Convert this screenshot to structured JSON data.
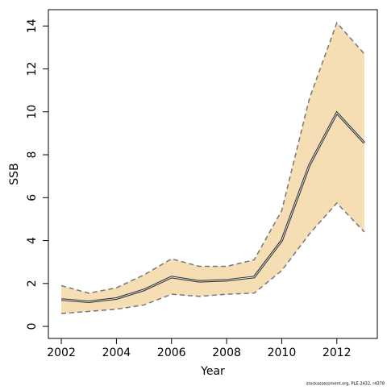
{
  "chart_data": {
    "type": "line",
    "x_label": "Year",
    "y_label": "SSB",
    "footnote": "stockassessment.org, PLE-2432, r4378",
    "x": [
      2002,
      2003,
      2004,
      2005,
      2006,
      2007,
      2008,
      2009,
      2010,
      2011,
      2012,
      2013
    ],
    "values": [
      1.25,
      1.15,
      1.3,
      1.7,
      2.3,
      2.1,
      2.15,
      2.3,
      4.0,
      7.5,
      9.95,
      8.55
    ],
    "upper": [
      1.9,
      1.55,
      1.8,
      2.4,
      3.15,
      2.8,
      2.8,
      3.1,
      5.4,
      10.6,
      14.15,
      12.7
    ],
    "lower": [
      0.6,
      0.7,
      0.8,
      1.0,
      1.5,
      1.4,
      1.5,
      1.55,
      2.6,
      4.3,
      5.75,
      4.4
    ],
    "line_color": "#333333",
    "band_color": "#f5deb3",
    "bound_color": "#777777",
    "xlim": [
      2001.53,
      2013.47
    ],
    "xticks": [
      2002,
      2004,
      2006,
      2008,
      2010,
      2012
    ],
    "ylim": [
      -0.56,
      14.76
    ],
    "yticks": [
      0,
      2,
      4,
      6,
      8,
      10,
      12,
      14
    ]
  }
}
